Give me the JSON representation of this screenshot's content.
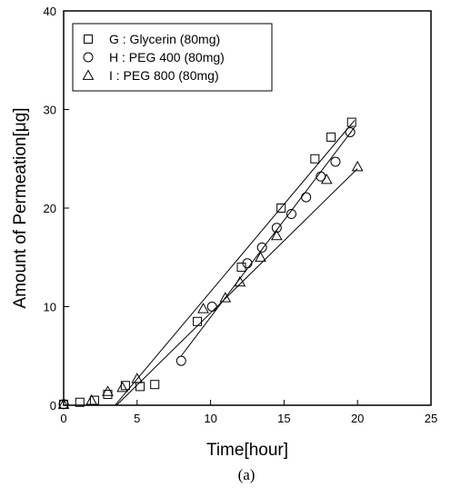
{
  "chart_data": {
    "type": "scatter",
    "xlabel": "Time[hour]",
    "ylabel": "Amount of Permeation[μg]",
    "caption": "(a)",
    "xlim": [
      0,
      25
    ],
    "ylim": [
      0,
      40
    ],
    "xticks": [
      "0",
      "5",
      "10",
      "15",
      "20",
      "25"
    ],
    "yticks": [
      "0",
      "10",
      "20",
      "30",
      "40"
    ],
    "grid": false,
    "legend_position": "top-left",
    "series": [
      {
        "name": "G : Glycerin (80mg)",
        "marker": "square",
        "x": [
          0,
          1.1,
          2.1,
          3.0,
          4.2,
          5.2,
          6.2,
          9.1,
          12.1,
          14.8,
          17.1,
          18.2,
          19.6
        ],
        "y": [
          0.1,
          0.3,
          0.5,
          1.1,
          2.0,
          1.9,
          2.1,
          8.5,
          14.0,
          20.0,
          25.0,
          27.2,
          28.7
        ],
        "fit": {
          "x": [
            3.5,
            19.8
          ],
          "y": [
            0.0,
            28.9
          ]
        }
      },
      {
        "name": "H : PEG 400 (80mg)",
        "marker": "circle",
        "x": [
          0,
          8.0,
          10.1,
          12.5,
          13.5,
          14.5,
          15.5,
          16.5,
          17.5,
          18.5,
          19.5
        ],
        "y": [
          0.1,
          4.5,
          10.0,
          14.4,
          16.0,
          18.0,
          19.4,
          21.1,
          23.2,
          24.7,
          27.7
        ],
        "fit": {
          "x": [
            8.0,
            19.8
          ],
          "y": [
            5.0,
            28.2
          ]
        }
      },
      {
        "name": "I : PEG 800 (80mg)",
        "marker": "triangle",
        "x": [
          0,
          1.9,
          3.0,
          4.0,
          5.0,
          9.5,
          11.0,
          12.0,
          13.4,
          14.5,
          17.9,
          20.0
        ],
        "y": [
          0.1,
          0.5,
          1.4,
          1.8,
          2.7,
          9.8,
          10.9,
          12.5,
          15.0,
          17.2,
          22.9,
          24.2
        ],
        "fit": {
          "x": [
            3.6,
            20.0
          ],
          "y": [
            0.0,
            24.0
          ]
        }
      }
    ]
  }
}
